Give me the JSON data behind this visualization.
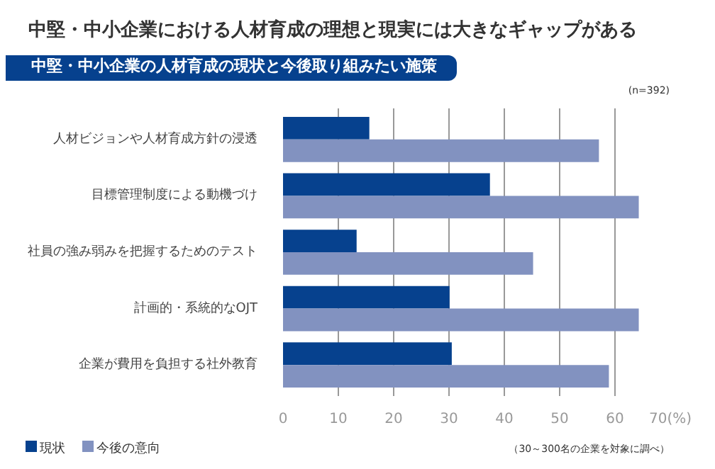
{
  "chart_data": {
    "type": "bar",
    "orientation": "horizontal",
    "title": "中堅・中小企業における人材育成の理想と現実には大きなギャップがある",
    "subtitle": "中堅・中小企業の人材育成の現状と今後取り組みたい施策",
    "categories": [
      "人材ビジョンや人材育成方針の浸透",
      "目標管理制度による動機づけ",
      "社員の強み弱みを把握するためのテスト",
      "計画的・系統的なOJT",
      "企業が費用を負担する社外教育"
    ],
    "series": [
      {
        "name": "現状",
        "color": "#06418e",
        "values": [
          15.6,
          37.4,
          13.3,
          30.1,
          30.5
        ]
      },
      {
        "name": "今後の意向",
        "color": "#8292c0",
        "values": [
          57.1,
          64.3,
          45.2,
          64.3,
          58.9
        ]
      }
    ],
    "xlim": [
      0,
      70
    ],
    "xticks": [
      0,
      10,
      20,
      30,
      40,
      50,
      60,
      {
        "value": 70,
        "label": "70(%)"
      }
    ],
    "grid": "x",
    "legend": "bottom left",
    "annotations": [
      "(n=392)",
      "（30～300名の企業を対象に調べ）"
    ]
  }
}
